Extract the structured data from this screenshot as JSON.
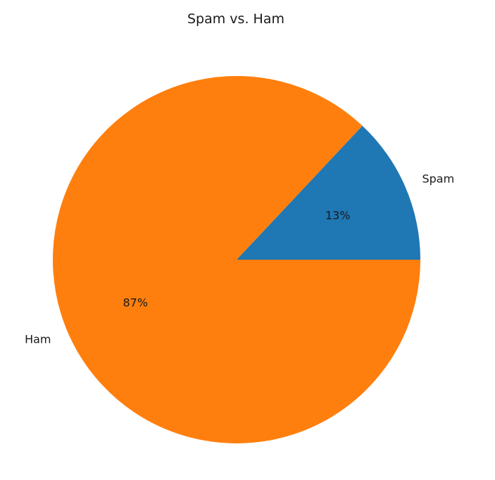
{
  "chart_data": {
    "type": "pie",
    "title": "Spam vs. Ham",
    "slices": [
      {
        "label": "Spam",
        "value": 13,
        "pct_label": "13%",
        "color": "#1f77b4"
      },
      {
        "label": "Ham",
        "value": 87,
        "pct_label": "87%",
        "color": "#ff7f0e"
      }
    ],
    "start_angle_deg": 0,
    "direction": "counterclockwise"
  }
}
